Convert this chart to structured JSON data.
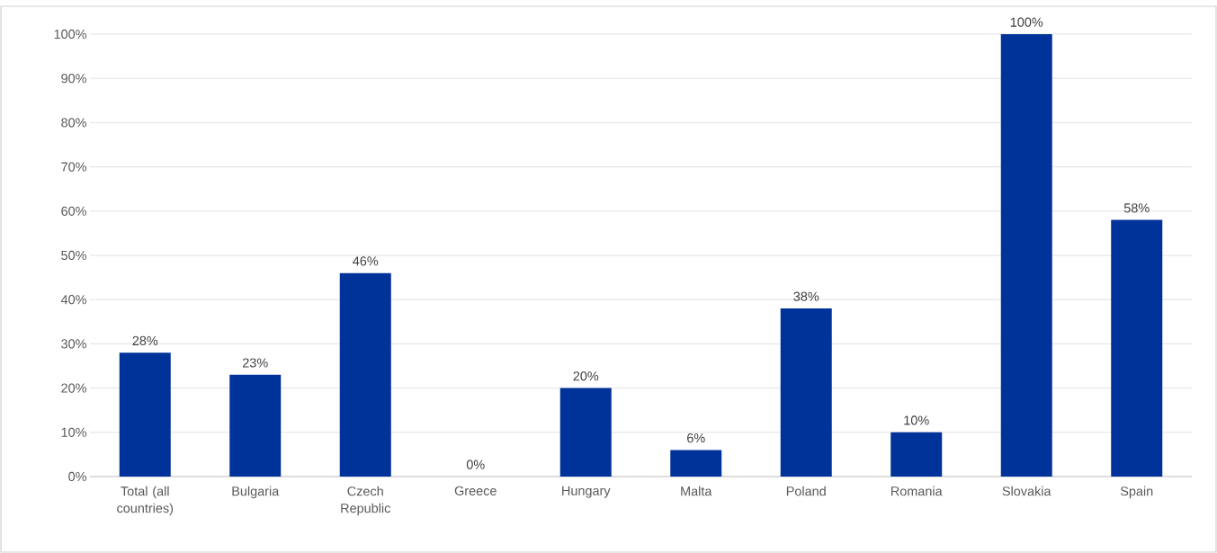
{
  "chart_data": {
    "type": "bar",
    "categories": [
      "Total (all countries)",
      "Bulgaria",
      "Czech Republic",
      "Greece",
      "Hungary",
      "Malta",
      "Poland",
      "Romania",
      "Slovakia",
      "Spain"
    ],
    "values": [
      28,
      23,
      46,
      0,
      20,
      6,
      38,
      10,
      100,
      58
    ],
    "value_labels": [
      "28%",
      "23%",
      "46%",
      "0%",
      "20%",
      "6%",
      "38%",
      "10%",
      "100%",
      "58%"
    ],
    "color": "#003399",
    "ylim": [
      0,
      100
    ],
    "yticks": [
      {
        "value": 0,
        "label": "0%"
      },
      {
        "value": 10,
        "label": "10%"
      },
      {
        "value": 20,
        "label": "20%"
      },
      {
        "value": 30,
        "label": "30%"
      },
      {
        "value": 40,
        "label": "40%"
      },
      {
        "value": 50,
        "label": "50%"
      },
      {
        "value": 60,
        "label": "60%"
      },
      {
        "value": 70,
        "label": "70%"
      },
      {
        "value": 80,
        "label": "80%"
      },
      {
        "value": 90,
        "label": "90%"
      },
      {
        "value": 100,
        "label": "100%"
      }
    ],
    "grid": "y"
  }
}
